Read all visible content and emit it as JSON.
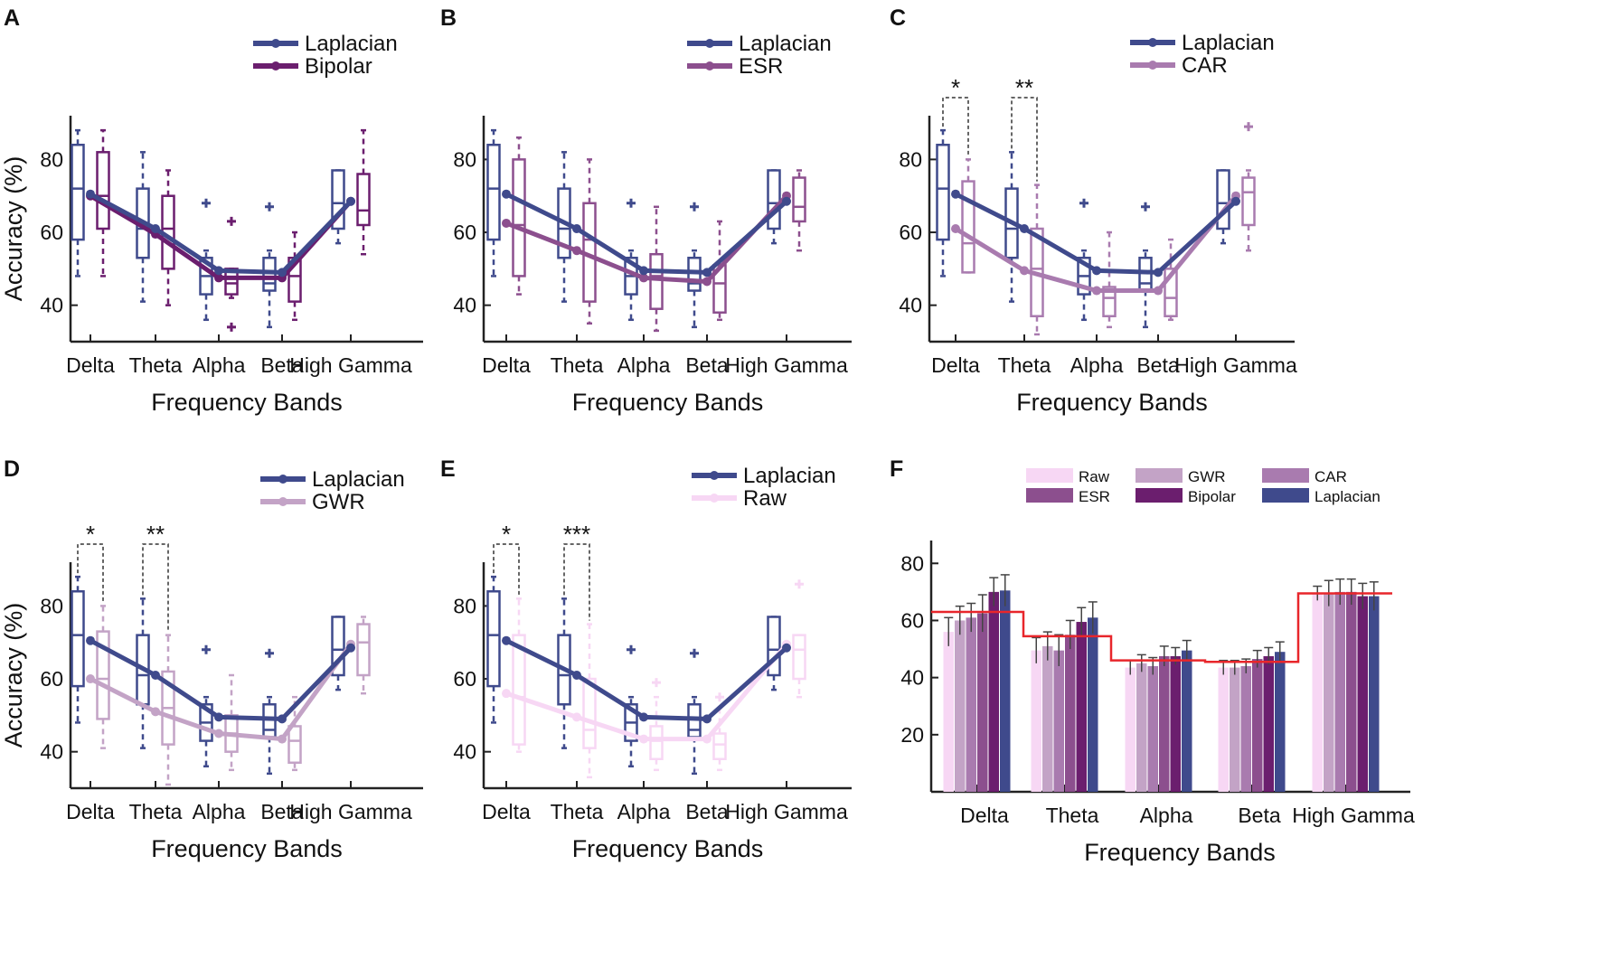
{
  "colors": {
    "Laplacian": "#3F4A8C",
    "Bipolar": "#6B1E6E",
    "ESR": "#8C4F8E",
    "CAR": "#A97BAF",
    "GWR": "#C3A3C6",
    "Raw": "#F7D7F4",
    "mean_line": "#E8262B",
    "axis": "#222222"
  },
  "chart_data": [
    {
      "panel": "A",
      "type": "box-line",
      "xlabel": "Frequency Bands",
      "ylabel": "Accuracy (%)",
      "categories": [
        "Delta",
        "Theta",
        "Alpha",
        "Beta",
        "High Gamma"
      ],
      "ylim": [
        30,
        92
      ],
      "yticks": [
        40,
        60,
        80
      ],
      "legend": [
        "Laplacian",
        "Bipolar"
      ],
      "series": [
        {
          "name": "Laplacian",
          "means": [
            70.5,
            61,
            49.5,
            49,
            68.5
          ],
          "boxes": [
            [
              48,
              58,
              72,
              84,
              88
            ],
            [
              41,
              53,
              61,
              72,
              82
            ],
            [
              36,
              43,
              48,
              53,
              55
            ],
            [
              34,
              44,
              46,
              53,
              55
            ],
            [
              57,
              61,
              68,
              77,
              77
            ]
          ],
          "outliers": [
            [],
            [],
            [
              68
            ],
            [
              67
            ],
            []
          ]
        },
        {
          "name": "Bipolar",
          "means": [
            70,
            59.5,
            47.5,
            47.5,
            68.5
          ],
          "boxes": [
            [
              48,
              61,
              70,
              82,
              88
            ],
            [
              40,
              50,
              61,
              70,
              77
            ],
            [
              42,
              43,
              46,
              50,
              50
            ],
            [
              36,
              41,
              48,
              53,
              60
            ],
            [
              54,
              62,
              66,
              76,
              88
            ]
          ],
          "outliers": [
            [],
            [],
            [
              63,
              34
            ],
            [],
            []
          ]
        }
      ],
      "significance": []
    },
    {
      "panel": "B",
      "type": "box-line",
      "xlabel": "Frequency Bands",
      "ylabel": "",
      "categories": [
        "Delta",
        "Theta",
        "Alpha",
        "Beta",
        "High Gamma"
      ],
      "ylim": [
        30,
        92
      ],
      "yticks": [
        40,
        60,
        80
      ],
      "legend": [
        "Laplacian",
        "ESR"
      ],
      "series": [
        {
          "name": "Laplacian",
          "means": [
            70.5,
            61,
            49.5,
            49,
            68.5
          ],
          "boxes": [
            [
              48,
              58,
              72,
              84,
              88
            ],
            [
              41,
              53,
              61,
              72,
              82
            ],
            [
              36,
              43,
              48,
              53,
              55
            ],
            [
              34,
              44,
              46,
              53,
              55
            ],
            [
              57,
              61,
              68,
              77,
              77
            ]
          ],
          "outliers": [
            [],
            [],
            [
              68
            ],
            [
              67
            ],
            []
          ]
        },
        {
          "name": "ESR",
          "means": [
            62.5,
            55,
            47.5,
            46.5,
            70
          ],
          "boxes": [
            [
              43,
              48,
              62,
              80,
              86
            ],
            [
              35,
              41,
              58,
              68,
              80
            ],
            [
              33,
              39,
              48,
              54,
              67
            ],
            [
              36,
              38,
              46,
              51,
              63
            ],
            [
              55,
              63,
              67,
              75,
              77
            ]
          ],
          "outliers": [
            [],
            [],
            [],
            [],
            []
          ]
        }
      ],
      "significance": []
    },
    {
      "panel": "C",
      "type": "box-line",
      "xlabel": "Frequency Bands",
      "ylabel": "",
      "categories": [
        "Delta",
        "Theta",
        "Alpha",
        "Beta",
        "High Gamma"
      ],
      "ylim": [
        30,
        92
      ],
      "yticks": [
        40,
        60,
        80
      ],
      "legend": [
        "Laplacian",
        "CAR"
      ],
      "series": [
        {
          "name": "Laplacian",
          "means": [
            70.5,
            61,
            49.5,
            49,
            68.5
          ],
          "boxes": [
            [
              48,
              58,
              72,
              84,
              88
            ],
            [
              41,
              53,
              61,
              72,
              82
            ],
            [
              36,
              43,
              48,
              53,
              55
            ],
            [
              34,
              44,
              46,
              53,
              55
            ],
            [
              57,
              61,
              68,
              77,
              77
            ]
          ],
          "outliers": [
            [],
            [],
            [
              68
            ],
            [
              67
            ],
            []
          ]
        },
        {
          "name": "CAR",
          "means": [
            61,
            49.5,
            44,
            44,
            70
          ],
          "boxes": [
            [
              49,
              49,
              57,
              74,
              80
            ],
            [
              32,
              37,
              50,
              61,
              73
            ],
            [
              34,
              37,
              42,
              45,
              60
            ],
            [
              36,
              37,
              42,
              50,
              58
            ],
            [
              55,
              62,
              71,
              75,
              77
            ]
          ],
          "outliers": [
            [],
            [],
            [],
            [],
            [
              89
            ]
          ]
        }
      ],
      "significance": [
        {
          "category": 0,
          "label": "*"
        },
        {
          "category": 1,
          "label": "**"
        }
      ]
    },
    {
      "panel": "D",
      "type": "box-line",
      "xlabel": "Frequency Bands",
      "ylabel": "Accuracy (%)",
      "categories": [
        "Delta",
        "Theta",
        "Alpha",
        "Beta",
        "High Gamma"
      ],
      "ylim": [
        30,
        92
      ],
      "yticks": [
        40,
        60,
        80
      ],
      "legend": [
        "Laplacian",
        "GWR"
      ],
      "series": [
        {
          "name": "Laplacian",
          "means": [
            70.5,
            61,
            49.5,
            49,
            68.5
          ],
          "boxes": [
            [
              48,
              58,
              72,
              84,
              88
            ],
            [
              41,
              53,
              61,
              72,
              82
            ],
            [
              36,
              43,
              48,
              53,
              55
            ],
            [
              34,
              44,
              46,
              53,
              55
            ],
            [
              57,
              61,
              68,
              77,
              77
            ]
          ],
          "outliers": [
            [],
            [],
            [
              68
            ],
            [
              67
            ],
            []
          ]
        },
        {
          "name": "GWR",
          "means": [
            60,
            51,
            45,
            43.5,
            69.5
          ],
          "boxes": [
            [
              41,
              49,
              60,
              73,
              80
            ],
            [
              31,
              42,
              52,
              62,
              72
            ],
            [
              35,
              40,
              45,
              50,
              61
            ],
            [
              35,
              37,
              43,
              47,
              55
            ],
            [
              56,
              61,
              70,
              75,
              77
            ]
          ],
          "outliers": [
            [],
            [],
            [],
            [],
            []
          ]
        }
      ],
      "significance": [
        {
          "category": 0,
          "label": "*"
        },
        {
          "category": 1,
          "label": "**"
        }
      ]
    },
    {
      "panel": "E",
      "type": "box-line",
      "xlabel": "Frequency Bands",
      "ylabel": "",
      "categories": [
        "Delta",
        "Theta",
        "Alpha",
        "Beta",
        "High Gamma"
      ],
      "ylim": [
        30,
        92
      ],
      "yticks": [
        40,
        60,
        80
      ],
      "legend": [
        "Laplacian",
        "Raw"
      ],
      "series": [
        {
          "name": "Laplacian",
          "means": [
            70.5,
            61,
            49.5,
            49,
            68.5
          ],
          "boxes": [
            [
              48,
              58,
              72,
              84,
              88
            ],
            [
              41,
              53,
              61,
              72,
              82
            ],
            [
              36,
              43,
              48,
              53,
              55
            ],
            [
              34,
              44,
              46,
              53,
              55
            ],
            [
              57,
              61,
              68,
              77,
              77
            ]
          ],
          "outliers": [
            [],
            [],
            [
              68
            ],
            [
              67
            ],
            []
          ]
        },
        {
          "name": "Raw",
          "means": [
            56,
            49.5,
            43.5,
            43.5,
            69.5
          ],
          "boxes": [
            [
              40,
              42,
              55,
              72,
              82
            ],
            [
              33,
              41,
              46,
              60,
              75
            ],
            [
              35,
              38,
              43,
              47,
              55
            ],
            [
              35,
              38,
              42,
              45,
              52
            ],
            [
              55,
              60,
              68,
              72,
              72
            ]
          ],
          "outliers": [
            [],
            [],
            [
              59
            ],
            [
              55
            ],
            [
              86
            ]
          ]
        }
      ],
      "significance": [
        {
          "category": 0,
          "label": "*"
        },
        {
          "category": 1,
          "label": "***"
        }
      ]
    },
    {
      "panel": "F",
      "type": "bar",
      "xlabel": "Frequency Bands",
      "ylabel": "",
      "categories": [
        "Delta",
        "Theta",
        "Alpha",
        "Beta",
        "High Gamma"
      ],
      "ylim": [
        0,
        88
      ],
      "yticks": [
        20,
        40,
        60,
        80
      ],
      "legend": [
        "Raw",
        "GWR",
        "CAR",
        "ESR",
        "Bipolar",
        "Laplacian"
      ],
      "series": [
        {
          "name": "Raw",
          "values": [
            56,
            49.5,
            43.5,
            43.5,
            69.5
          ],
          "err": [
            5,
            4.5,
            2.5,
            2.5,
            2.5
          ]
        },
        {
          "name": "GWR",
          "values": [
            60,
            51,
            45,
            43.5,
            69.5
          ],
          "err": [
            5,
            5,
            3,
            2.5,
            4.5
          ]
        },
        {
          "name": "CAR",
          "values": [
            61,
            49.5,
            44,
            44,
            70
          ],
          "err": [
            5,
            5.5,
            3,
            2.5,
            4.5
          ]
        },
        {
          "name": "ESR",
          "values": [
            62.5,
            55,
            47.5,
            46.5,
            70
          ],
          "err": [
            6.5,
            5,
            3.5,
            3,
            4.5
          ]
        },
        {
          "name": "Bipolar",
          "values": [
            70,
            59.5,
            47.5,
            47.5,
            68.5
          ],
          "err": [
            5,
            5,
            3,
            3,
            4.5
          ]
        },
        {
          "name": "Laplacian",
          "values": [
            70.5,
            61,
            49.5,
            49,
            68.5
          ],
          "err": [
            5.5,
            5.5,
            3.5,
            3.5,
            5
          ]
        }
      ],
      "mean_line": [
        63,
        54.5,
        46,
        45.5,
        69.5
      ]
    }
  ]
}
